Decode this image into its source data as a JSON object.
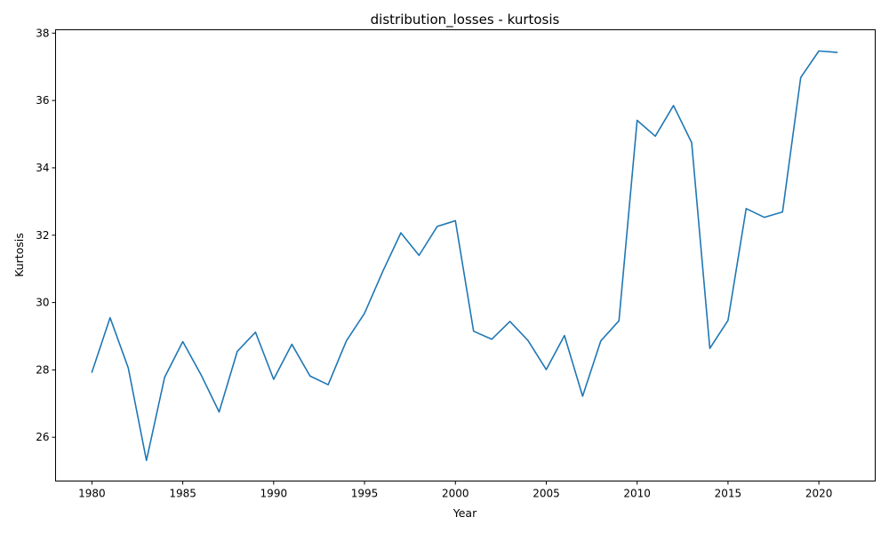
{
  "chart_data": {
    "type": "line",
    "title": "distribution_losses - kurtosis",
    "xlabel": "Year",
    "ylabel": "Kurtosis",
    "xlim": [
      1978.0,
      2023.1
    ],
    "ylim": [
      24.7,
      38.1
    ],
    "x_ticks": [
      1980,
      1985,
      1990,
      1995,
      2000,
      2005,
      2010,
      2015,
      2020
    ],
    "y_ticks": [
      26,
      28,
      30,
      32,
      34,
      36,
      38
    ],
    "grid": false,
    "legend": "none",
    "x": [
      1980,
      1981,
      1982,
      1983,
      1984,
      1985,
      1986,
      1987,
      1988,
      1989,
      1990,
      1991,
      1992,
      1993,
      1994,
      1995,
      1996,
      1997,
      1998,
      1999,
      2000,
      2001,
      2002,
      2003,
      2004,
      2005,
      2006,
      2007,
      2008,
      2009,
      2010,
      2011,
      2012,
      2013,
      2014,
      2015,
      2016,
      2017,
      2018,
      2019,
      2020,
      2021
    ],
    "series": [
      {
        "color": "#1f77b4",
        "values": [
          27.93,
          29.55,
          28.06,
          25.31,
          27.78,
          28.84,
          27.86,
          26.75,
          28.55,
          29.12,
          27.72,
          28.76,
          27.82,
          27.56,
          28.86,
          29.68,
          30.92,
          32.07,
          31.4,
          32.26,
          32.43,
          29.15,
          28.91,
          29.44,
          28.87,
          28.01,
          29.02,
          27.22,
          28.86,
          29.46,
          35.41,
          34.94,
          35.85,
          34.75,
          28.64,
          29.47,
          32.79,
          32.53,
          32.69,
          36.68,
          37.47,
          37.43
        ]
      }
    ]
  }
}
